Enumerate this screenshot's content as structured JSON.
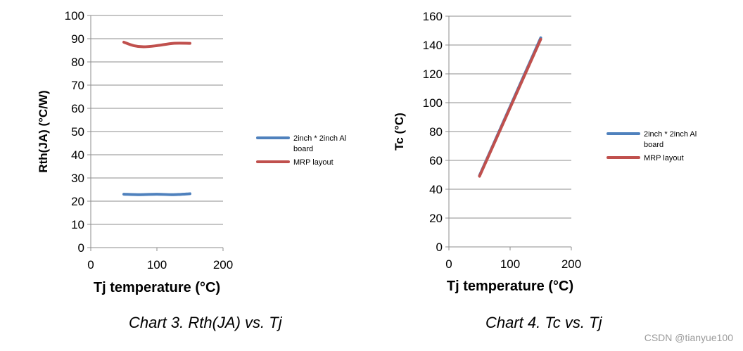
{
  "chart_data": [
    {
      "type": "line",
      "xlabel": "Tj temperature (°C)",
      "ylabel": "Rth(JA) (°C/W)",
      "xlim": [
        0,
        200
      ],
      "ylim": [
        0,
        100
      ],
      "xticks": [
        "0",
        "100",
        "200"
      ],
      "yticks": [
        "0",
        "10",
        "20",
        "30",
        "40",
        "50",
        "60",
        "70",
        "80",
        "90",
        "100"
      ],
      "grid": "horizontal",
      "legend_position": "right",
      "series": [
        {
          "name": "2inch * 2inch Al board",
          "color": "#4f81bd",
          "x": [
            50,
            75,
            100,
            125,
            150
          ],
          "y": [
            23,
            22.8,
            23,
            22.8,
            23.2
          ]
        },
        {
          "name": "MRP layout",
          "color": "#c0504d",
          "x": [
            50,
            65,
            80,
            100,
            125,
            150
          ],
          "y": [
            88.5,
            87,
            86.5,
            87,
            88,
            88
          ]
        }
      ]
    },
    {
      "type": "line",
      "xlabel": "Tj temperature (°C)",
      "ylabel": "Tc (°C)",
      "xlim": [
        0,
        200
      ],
      "ylim": [
        0,
        160
      ],
      "xticks": [
        "0",
        "100",
        "200"
      ],
      "yticks": [
        "0",
        "20",
        "40",
        "60",
        "80",
        "100",
        "120",
        "140",
        "160"
      ],
      "grid": "horizontal",
      "legend_position": "right",
      "series": [
        {
          "name": "2inch * 2inch Al board",
          "color": "#4f81bd",
          "x": [
            50,
            150
          ],
          "y": [
            49.5,
            145
          ]
        },
        {
          "name": "MRP layout",
          "color": "#c0504d",
          "x": [
            50,
            150
          ],
          "y": [
            49,
            144
          ]
        }
      ]
    }
  ],
  "captions": {
    "chart3": "Chart 3. Rth(JA) vs. Tj",
    "chart4": "Chart 4. Tc vs. Tj"
  },
  "watermark": "CSDN @tianyue100"
}
